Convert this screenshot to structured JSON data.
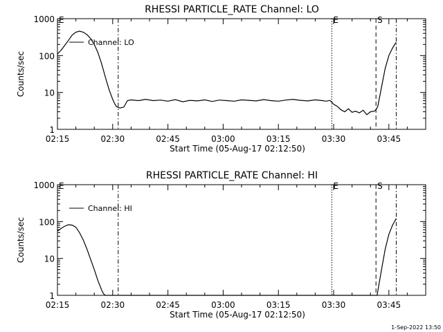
{
  "footer_timestamp": "1-Sep-2022 13:50",
  "chart_data": [
    {
      "type": "line",
      "title": "RHESSI PARTICLE_RATE Channel: LO",
      "xlabel": "Start Time (05-Aug-17 02:12:50)",
      "ylabel": "Counts/sec",
      "yscale": "log",
      "ylim": [
        1,
        1000
      ],
      "xlim_minutes": [
        0,
        100
      ],
      "x_tick_minutes": [
        0,
        15,
        30,
        45,
        60,
        75,
        90
      ],
      "x_tick_labels": [
        "02:15",
        "02:30",
        "02:45",
        "03:00",
        "03:15",
        "03:30",
        "03:45"
      ],
      "y_ticks": [
        1,
        10,
        100,
        1000
      ],
      "y_tick_labels": [
        "1",
        "10",
        "100",
        "1000"
      ],
      "legend": {
        "label": "Channel: LO",
        "position": "top-left"
      },
      "markers": [
        {
          "minute": 0,
          "style": "none",
          "label": "E"
        },
        {
          "minute": 16.5,
          "style": "dashdot",
          "label": ""
        },
        {
          "minute": 74.5,
          "style": "dotted",
          "label": "E"
        },
        {
          "minute": 86.5,
          "style": "dashed",
          "label": "S"
        },
        {
          "minute": 92,
          "style": "dashdot",
          "label": ""
        }
      ],
      "series": [
        {
          "name": "Channel: LO",
          "x": [
            0,
            1,
            2,
            3,
            4,
            5,
            6,
            7,
            8,
            9,
            10,
            11,
            12,
            13,
            14,
            15,
            15.5,
            16,
            16.5,
            17,
            18,
            19,
            20,
            22,
            24,
            26,
            28,
            30,
            32,
            34,
            36,
            38,
            40,
            42,
            44,
            46,
            48,
            50,
            52,
            54,
            56,
            58,
            60,
            62,
            64,
            66,
            68,
            70,
            72,
            73,
            74,
            75,
            76,
            77,
            78,
            79,
            80,
            81,
            82,
            83,
            84,
            85,
            86,
            86.5,
            87,
            88,
            89,
            90,
            91,
            92
          ],
          "y": [
            110,
            140,
            190,
            260,
            360,
            430,
            460,
            430,
            370,
            290,
            200,
            120,
            60,
            26,
            12,
            6.5,
            5,
            4.2,
            3.9,
            3.8,
            4.0,
            6.0,
            6.3,
            6.0,
            6.5,
            6.0,
            6.2,
            5.8,
            6.4,
            5.6,
            6.1,
            5.9,
            6.3,
            5.7,
            6.2,
            6.0,
            5.8,
            6.3,
            6.1,
            5.9,
            6.4,
            6.0,
            5.8,
            6.2,
            6.5,
            6.1,
            5.9,
            6.3,
            6.0,
            5.8,
            6.1,
            4.8,
            4.2,
            3.4,
            3.0,
            3.6,
            2.9,
            3.1,
            2.8,
            3.3,
            2.5,
            3.0,
            3.1,
            3.4,
            4.2,
            14,
            45,
            100,
            160,
            230
          ]
        }
      ]
    },
    {
      "type": "line",
      "title": "RHESSI PARTICLE_RATE Channel: HI",
      "xlabel": "Start Time (05-Aug-17 02:12:50)",
      "ylabel": "Counts/sec",
      "yscale": "log",
      "ylim": [
        1,
        1000
      ],
      "xlim_minutes": [
        0,
        100
      ],
      "x_tick_minutes": [
        0,
        15,
        30,
        45,
        60,
        75,
        90
      ],
      "x_tick_labels": [
        "02:15",
        "02:30",
        "02:45",
        "03:00",
        "03:15",
        "03:30",
        "03:45"
      ],
      "y_ticks": [
        1,
        10,
        100,
        1000
      ],
      "y_tick_labels": [
        "1",
        "10",
        "100",
        "1000"
      ],
      "legend": {
        "label": "Channel: HI",
        "position": "top-left"
      },
      "markers": [
        {
          "minute": 0,
          "style": "none",
          "label": "E"
        },
        {
          "minute": 16.5,
          "style": "dashdot",
          "label": ""
        },
        {
          "minute": 74.5,
          "style": "dotted",
          "label": "E"
        },
        {
          "minute": 86.5,
          "style": "dashed",
          "label": "S"
        },
        {
          "minute": 92,
          "style": "dashdot",
          "label": ""
        }
      ],
      "series": [
        {
          "name": "Channel: HI",
          "x": [
            0,
            1,
            2,
            3,
            4,
            5,
            6,
            7,
            8,
            9,
            10,
            11,
            12,
            12.5,
            13,
            86.8,
            87,
            88,
            89,
            90,
            91,
            92
          ],
          "y": [
            55,
            65,
            75,
            82,
            80,
            70,
            50,
            32,
            18,
            9.5,
            5,
            2.5,
            1.4,
            1.1,
            1.0,
            1.0,
            1.3,
            5,
            18,
            45,
            80,
            120
          ]
        }
      ]
    }
  ]
}
